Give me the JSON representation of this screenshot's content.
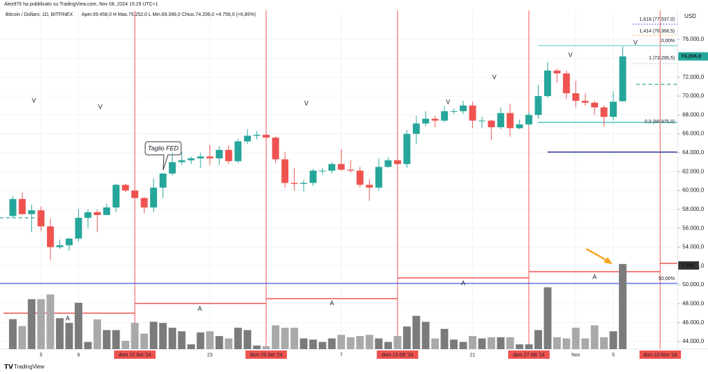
{
  "header": {
    "publisher": "Alex975 ha pubblicato su TradingView.com, Nov 06, 2024 15:29 UTC+1",
    "symbol": "Bitcoin / Dollaro, 1D, BITFINEX",
    "ohlc_text": "Aper.69.458,0  H  Max.75.252,0  L  Min.69.396,0  Chius.74.206,0  +4.756,0 (+6,85%)"
  },
  "chart_data": {
    "type": "candlestick",
    "currency": "USD",
    "categories": [
      null,
      null,
      null,
      "5",
      null,
      null,
      null,
      "9",
      null,
      null,
      null,
      null,
      null,
      "dom 15 Set '24",
      null,
      null,
      null,
      null,
      null,
      null,
      null,
      "23",
      null,
      null,
      null,
      null,
      null,
      "dom 29 Set '24",
      null,
      null,
      null,
      null,
      null,
      null,
      null,
      "7",
      null,
      null,
      null,
      null,
      null,
      "dom 13 Ott '24",
      null,
      null,
      null,
      null,
      null,
      null,
      null,
      "21",
      null,
      null,
      null,
      null,
      null,
      "dom 27 Ott '24",
      null,
      null,
      null,
      null,
      "Nov",
      null,
      null,
      null,
      "5",
      null,
      null,
      null,
      null,
      "dom 10 Nov '24"
    ],
    "ohlc": [
      [
        57300,
        59400,
        57100,
        59100
      ],
      [
        59100,
        59800,
        57400,
        57500
      ],
      [
        57500,
        58500,
        55600,
        57900
      ],
      [
        57900,
        58300,
        55700,
        56200
      ],
      [
        56200,
        57000,
        52600,
        54000
      ],
      [
        54000,
        54800,
        53800,
        54200
      ],
      [
        54200,
        55000,
        53600,
        54900
      ],
      [
        54900,
        58000,
        54600,
        57100
      ],
      [
        57100,
        58000,
        56000,
        57700
      ],
      [
        57700,
        58000,
        55600,
        57400
      ],
      [
        57400,
        58600,
        57400,
        58200
      ],
      [
        58200,
        60700,
        57700,
        60600
      ],
      [
        60600,
        60700,
        59800,
        60000
      ],
      [
        60000,
        60400,
        58700,
        59200
      ],
      [
        59200,
        59300,
        57600,
        58200
      ],
      [
        58200,
        61300,
        57700,
        60300
      ],
      [
        60300,
        61800,
        59200,
        61800
      ],
      [
        61800,
        64000,
        61600,
        63000
      ],
      [
        63000,
        64100,
        62700,
        63200
      ],
      [
        63200,
        63600,
        62800,
        63400
      ],
      [
        63400,
        64000,
        62400,
        63600
      ],
      [
        63600,
        64800,
        62700,
        63400
      ],
      [
        63400,
        64700,
        62700,
        64300
      ],
      [
        64300,
        64800,
        62800,
        63100
      ],
      [
        63100,
        65500,
        62900,
        65200
      ],
      [
        65200,
        66500,
        64900,
        65800
      ],
      [
        65800,
        66300,
        65400,
        65900
      ],
      [
        65900,
        66100,
        65500,
        65600
      ],
      [
        65600,
        65700,
        62900,
        63300
      ],
      [
        63300,
        64100,
        60300,
        60800
      ],
      [
        60800,
        62400,
        60000,
        60700
      ],
      [
        60700,
        61100,
        59900,
        60800
      ],
      [
        60800,
        62300,
        60500,
        62100
      ],
      [
        62100,
        62400,
        61700,
        62100
      ],
      [
        62100,
        63000,
        61800,
        62800
      ],
      [
        62800,
        64400,
        62100,
        62200
      ],
      [
        62200,
        63200,
        61900,
        62100
      ],
      [
        62100,
        62500,
        60300,
        60600
      ],
      [
        60600,
        61200,
        58900,
        60300
      ],
      [
        60300,
        63400,
        60000,
        62500
      ],
      [
        62500,
        63500,
        62400,
        63200
      ],
      [
        63200,
        63500,
        62400,
        62800
      ],
      [
        62800,
        66400,
        62400,
        66000
      ],
      [
        66000,
        67900,
        64900,
        67100
      ],
      [
        67100,
        68400,
        66800,
        67600
      ],
      [
        67600,
        67900,
        66700,
        67400
      ],
      [
        67400,
        68900,
        67200,
        68400
      ],
      [
        68400,
        68700,
        68100,
        68400
      ],
      [
        68400,
        69500,
        68100,
        69000
      ],
      [
        69000,
        69400,
        66600,
        67400
      ],
      [
        67400,
        67800,
        66600,
        67400
      ],
      [
        67400,
        67500,
        65300,
        66700
      ],
      [
        66700,
        68800,
        66500,
        68200
      ],
      [
        68200,
        69200,
        65700,
        66600
      ],
      [
        66600,
        67500,
        66500,
        67000
      ],
      [
        67000,
        68300,
        66800,
        68000
      ],
      [
        68000,
        71200,
        67600,
        70000
      ],
      [
        70000,
        73600,
        69800,
        72700
      ],
      [
        72700,
        72900,
        71400,
        72400
      ],
      [
        72400,
        72700,
        69700,
        70300
      ],
      [
        70300,
        71600,
        68800,
        69500
      ],
      [
        69500,
        70300,
        69000,
        69300
      ],
      [
        69300,
        69500,
        68000,
        68800
      ],
      [
        68800,
        69000,
        66800,
        67800
      ],
      [
        67800,
        70500,
        67400,
        69400
      ],
      [
        69458,
        75252,
        69396,
        74206
      ],
      null,
      null,
      null,
      null
    ],
    "volume": [
      1.26,
      0.97,
      2.1,
      2.1,
      2.3,
      1.3,
      1.1,
      1.95,
      0.3,
      1.25,
      0.8,
      0.8,
      0.35,
      1.1,
      0.65,
      1.15,
      1.1,
      0.9,
      0.75,
      0.2,
      0.7,
      0.75,
      0.55,
      0.45,
      0.9,
      0.8,
      0.15,
      0.12,
      1.0,
      0.9,
      0.9,
      0.45,
      0.4,
      0.3,
      0.45,
      0.6,
      0.5,
      0.55,
      0.6,
      0.45,
      0.3,
      0.55,
      0.95,
      1.4,
      1.15,
      0.45,
      0.85,
      0.4,
      0.3,
      0.55,
      0.45,
      0.5,
      0.5,
      0.5,
      0.2,
      0.2,
      0.8,
      2.6,
      0.5,
      0.45,
      0.9,
      0.45,
      1.0,
      0.5,
      0.75,
      3.58,
      null,
      null,
      null,
      null
    ],
    "volume_label": "3,58K",
    "last_price_label": "74.206,0",
    "ylim": [
      42830,
      79080
    ],
    "yticks": [
      {
        "value": 44000,
        "label": "44.000,0"
      },
      {
        "value": 46000,
        "label": "46.000,0"
      },
      {
        "value": 48000,
        "label": "48.000,0"
      },
      {
        "value": 50000,
        "label": "50.000,0"
      },
      {
        "value": 52000,
        "label": "52.000,0"
      },
      {
        "value": 54000,
        "label": "54.000,0"
      },
      {
        "value": 56000,
        "label": "56.000,0"
      },
      {
        "value": 58000,
        "label": "58.000,0"
      },
      {
        "value": 60000,
        "label": "60.000,0"
      },
      {
        "value": 62000,
        "label": "62.000,0"
      },
      {
        "value": 64000,
        "label": "64.000,0"
      },
      {
        "value": 66000,
        "label": "66.000,0"
      },
      {
        "value": 68000,
        "label": "68.000,0"
      },
      {
        "value": 70000,
        "label": "70.000,0"
      },
      {
        "value": 72000,
        "label": "72.000,0"
      },
      {
        "value": 74000,
        "label": "74.000,0"
      },
      {
        "value": 76000,
        "label": "76.000,0"
      }
    ],
    "grid": true,
    "up_color": "#26a69a",
    "down_color": "#ef5350",
    "volume_up_color": "#7b7b7b",
    "volume_down_color": "#a9a9a9",
    "fib_labels": [
      "1,618 (77.537,0)",
      "1,414 (76.368,5)",
      "0,00%",
      "1 (73.295,5)",
      "0,5 (66.975,0)",
      "50,00%"
    ],
    "annotation": "Taglio FED",
    "markers_v": [
      "V",
      "V",
      "V",
      "V",
      "V",
      "V",
      "V"
    ],
    "markers_a": [
      "A",
      "A",
      "A",
      "A",
      "A"
    ]
  },
  "footer": {
    "logo": "TradingView"
  }
}
